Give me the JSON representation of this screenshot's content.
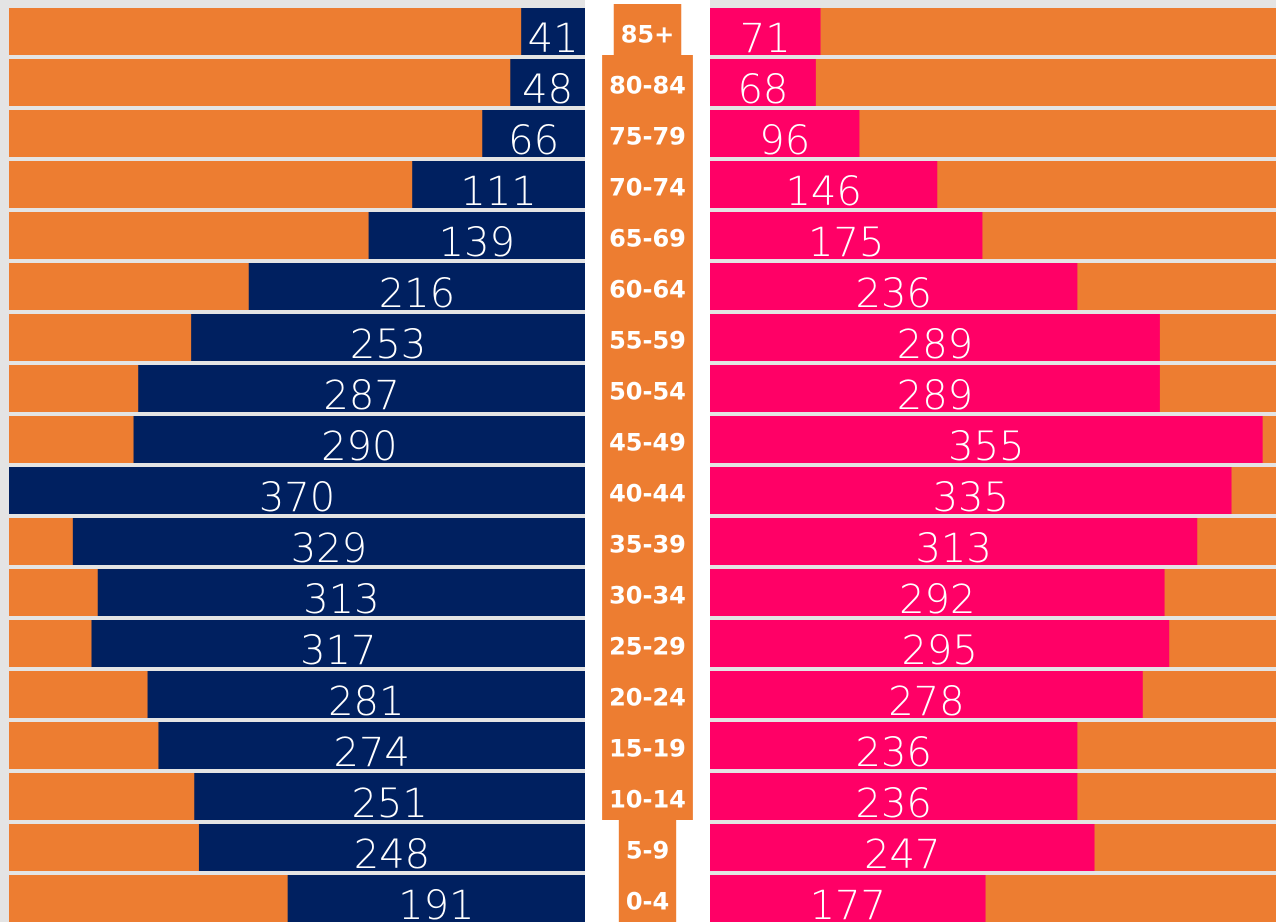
{
  "chart_data": {
    "type": "pyramid",
    "categories": [
      "85+",
      "80-84",
      "75-79",
      "70-74",
      "65-69",
      "60-64",
      "55-59",
      "50-54",
      "45-49",
      "40-44",
      "35-39",
      "30-34",
      "25-29",
      "20-24",
      "15-19",
      "10-14",
      "5-9",
      "0-4"
    ],
    "series": [
      {
        "color": "#002060",
        "values": [
          41,
          48,
          66,
          111,
          139,
          216,
          253,
          287,
          290,
          370,
          329,
          313,
          317,
          281,
          274,
          251,
          248,
          191
        ]
      },
      {
        "color": "#ff0066",
        "values": [
          71,
          68,
          96,
          146,
          175,
          236,
          289,
          289,
          355,
          335,
          313,
          292,
          295,
          278,
          236,
          236,
          247,
          177
        ]
      }
    ],
    "background_color": "#ed7d31"
  }
}
